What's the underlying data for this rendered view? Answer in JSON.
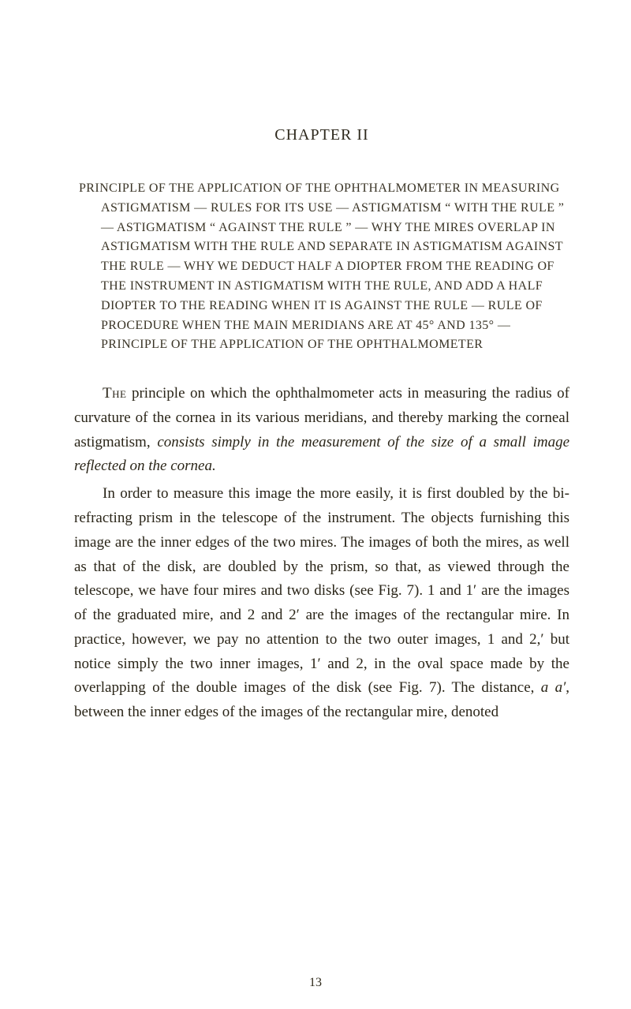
{
  "chapter": {
    "title": "CHAPTER II"
  },
  "heading": {
    "text": "PRINCIPLE OF THE APPLICATION OF THE OPHTHALMOMETER IN MEASURING ASTIGMATISM — RULES FOR ITS USE — ASTIGMATISM “ WITH THE RULE ” — ASTIGMATISM “ AGAINST THE RULE ” — WHY THE MIRES OVERLAP IN ASTIGMATISM WITH THE RULE AND SEPARATE IN ASTIGMATISM AGAINST THE RULE — WHY WE DEDUCT HALF A DIOPTER FROM THE READING OF THE INSTRUMENT IN ASTIGMATISM WITH THE RULE, AND ADD A HALF DIOPTER TO THE READING WHEN IT IS AGAINST THE RULE — RULE OF PROCEDURE WHEN THE MAIN MERIDIANS ARE AT 45° AND 135° — PRINCIPLE OF THE APPLICATION OF THE OPHTHALMOMETER"
  },
  "para1": {
    "lead": "The",
    "rest_a": " principle on which the ophthalmometer acts in measuring the radius of curvature of the cornea in its various meridians, and thereby marking the corneal astigmatism, ",
    "ital": "consists simply in the measurement of the size of a small image reflected on the cornea.",
    "rest_b": ""
  },
  "para2": {
    "a": "In order to measure this image the more easily, it is first doubled by the bi-refracting prism in the telescope of the instrument. The objects furnishing this image are the inner edges of the two mires. The images of both the mires, as well as that of the disk, are doubled by the prism, so that, as viewed through the telescope, we have four mires and two disks (see Fig. 7). 1 and 1′ are the images of the graduated mire, and 2 and 2′ are the images of the rectangular mire. In practice, however, we pay no attention to the two outer images, 1 and 2,′ but notice simply the two inner images, 1′ and 2, in the oval space made by the overlapping of the double images of the disk (see Fig. 7). The distance, ",
    "ital": "a a′",
    "b": ", between the inner edges of the images of the rectangular mire, denoted"
  },
  "page_number": "13"
}
